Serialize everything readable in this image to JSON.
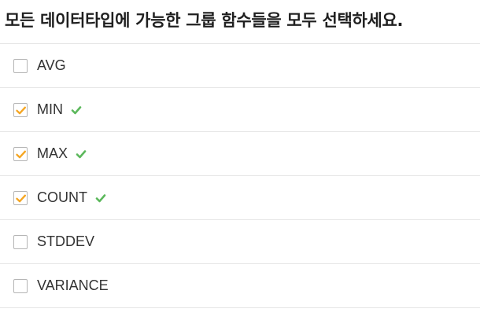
{
  "question": {
    "text": "모든 데이터타입에 가능한 그룹 함수들을 모두 선택하세요."
  },
  "colors": {
    "checkmark": "#f5a623",
    "correct_mark": "#5cb85c",
    "divider": "#e6e6e6",
    "checkbox_border": "#b5b5b5"
  },
  "options": [
    {
      "label": "AVG",
      "checked": false,
      "correct": false
    },
    {
      "label": "MIN",
      "checked": true,
      "correct": true
    },
    {
      "label": "MAX",
      "checked": true,
      "correct": true
    },
    {
      "label": "COUNT",
      "checked": true,
      "correct": true
    },
    {
      "label": "STDDEV",
      "checked": false,
      "correct": false
    },
    {
      "label": "VARIANCE",
      "checked": false,
      "correct": false
    }
  ],
  "icons": {
    "checkbox_checked": "orange-check-icon",
    "correct": "green-check-icon"
  }
}
